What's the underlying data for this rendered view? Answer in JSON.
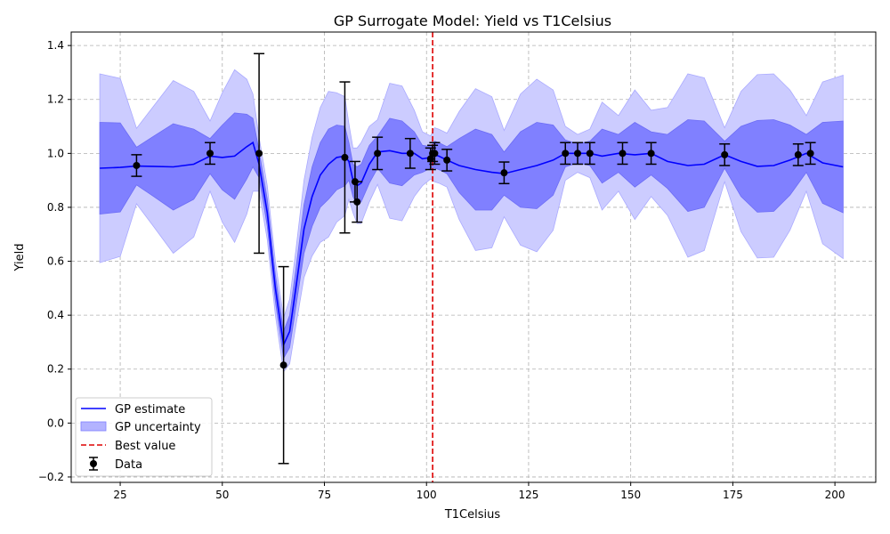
{
  "chart_data": {
    "type": "line",
    "title": "GP Surrogate Model: Yield vs T1Celsius",
    "xlabel": "T1Celsius",
    "ylabel": "Yield",
    "xlim": [
      13,
      210
    ],
    "ylim": [
      -0.22,
      1.45
    ],
    "xticks": [
      25,
      50,
      75,
      100,
      125,
      150,
      175,
      200
    ],
    "yticks": [
      -0.2,
      0.0,
      0.2,
      0.4,
      0.6,
      0.8,
      1.0,
      1.2,
      1.4
    ],
    "ytick_labels": [
      "−0.2",
      "0.0",
      "0.2",
      "0.4",
      "0.6",
      "0.8",
      "1.0",
      "1.2",
      "1.4"
    ],
    "grid": true,
    "legend_position": "lower-left",
    "colors": {
      "gp_line": "#0000ff",
      "band_inner": "#8080ff",
      "band_outer": "#ccccff",
      "best_line": "#dd0000",
      "data": "#000000"
    },
    "legend": [
      {
        "label": "GP estimate",
        "kind": "line"
      },
      {
        "label": "GP uncertainty",
        "kind": "patch"
      },
      {
        "label": "Best value",
        "kind": "dashed"
      },
      {
        "label": "Data",
        "kind": "errorbar"
      }
    ],
    "gp_estimate": {
      "name": "GP estimate",
      "x": [
        20,
        25,
        29,
        33,
        38,
        43,
        47,
        50,
        53,
        56,
        57.5,
        59,
        61,
        63,
        65,
        66.5,
        68,
        70,
        72,
        74,
        76,
        78,
        80,
        81,
        82,
        83,
        84,
        86,
        88,
        91,
        94,
        97,
        99,
        101,
        102,
        103,
        105,
        108,
        112,
        116,
        119,
        123,
        127,
        131,
        134,
        137,
        140,
        143,
        147,
        151,
        155,
        159,
        164,
        168,
        173,
        177,
        181,
        185,
        189,
        193,
        197,
        202
      ],
      "y": [
        0.945,
        0.948,
        0.953,
        0.952,
        0.95,
        0.96,
        0.99,
        0.985,
        0.99,
        1.025,
        1.04,
        0.96,
        0.78,
        0.5,
        0.29,
        0.34,
        0.5,
        0.72,
        0.84,
        0.92,
        0.96,
        0.985,
        0.99,
        0.97,
        0.9,
        0.88,
        0.89,
        0.96,
        1.005,
        1.01,
        1.0,
        1.0,
        0.98,
        0.985,
        0.995,
        0.99,
        0.975,
        0.955,
        0.94,
        0.93,
        0.925,
        0.94,
        0.955,
        0.975,
        1.0,
        1.0,
        1.0,
        0.99,
        1.0,
        0.995,
        1.0,
        0.97,
        0.955,
        0.96,
        0.995,
        0.97,
        0.952,
        0.955,
        0.975,
        1.0,
        0.965,
        0.95
      ],
      "inner_band": [
        0.17,
        0.165,
        0.07,
        0.11,
        0.16,
        0.13,
        0.065,
        0.12,
        0.16,
        0.12,
        0.09,
        0.05,
        0.05,
        0.05,
        0.05,
        0.06,
        0.07,
        0.09,
        0.11,
        0.12,
        0.13,
        0.12,
        0.11,
        0.07,
        0.06,
        0.07,
        0.07,
        0.07,
        0.06,
        0.12,
        0.12,
        0.08,
        0.05,
        0.04,
        0.05,
        0.05,
        0.05,
        0.1,
        0.15,
        0.14,
        0.08,
        0.14,
        0.16,
        0.13,
        0.05,
        0.035,
        0.045,
        0.1,
        0.07,
        0.12,
        0.08,
        0.1,
        0.17,
        0.16,
        0.05,
        0.13,
        0.17,
        0.17,
        0.13,
        0.07,
        0.15,
        0.17
      ],
      "outer_band": [
        0.35,
        0.33,
        0.14,
        0.22,
        0.32,
        0.27,
        0.13,
        0.24,
        0.32,
        0.25,
        0.18,
        0.1,
        0.1,
        0.1,
        0.1,
        0.12,
        0.14,
        0.18,
        0.22,
        0.25,
        0.27,
        0.24,
        0.22,
        0.14,
        0.12,
        0.14,
        0.15,
        0.14,
        0.12,
        0.25,
        0.25,
        0.16,
        0.1,
        0.08,
        0.1,
        0.1,
        0.1,
        0.2,
        0.3,
        0.28,
        0.16,
        0.28,
        0.32,
        0.26,
        0.1,
        0.07,
        0.09,
        0.2,
        0.14,
        0.24,
        0.16,
        0.2,
        0.34,
        0.32,
        0.1,
        0.26,
        0.34,
        0.34,
        0.26,
        0.14,
        0.3,
        0.34
      ]
    },
    "best_value": {
      "name": "Best value",
      "x": 101.5
    },
    "data": {
      "name": "Data",
      "x": [
        29,
        47,
        59,
        65,
        80,
        82.5,
        83,
        88,
        96,
        101,
        101.5,
        102,
        105,
        119,
        134,
        137,
        140,
        148,
        155,
        173,
        191,
        194
      ],
      "y": [
        0.955,
        1.0,
        1.0,
        0.215,
        0.985,
        0.895,
        0.82,
        1.0,
        1.0,
        0.98,
        1.0,
        1.0,
        0.975,
        0.928,
        1.0,
        1.0,
        1.0,
        1.0,
        1.0,
        0.995,
        0.995,
        1.0
      ],
      "err": [
        0.04,
        0.04,
        0.37,
        0.365,
        0.28,
        0.075,
        0.075,
        0.06,
        0.055,
        0.04,
        0.03,
        0.04,
        0.04,
        0.04,
        0.04,
        0.04,
        0.04,
        0.04,
        0.04,
        0.04,
        0.04,
        0.04
      ]
    }
  }
}
